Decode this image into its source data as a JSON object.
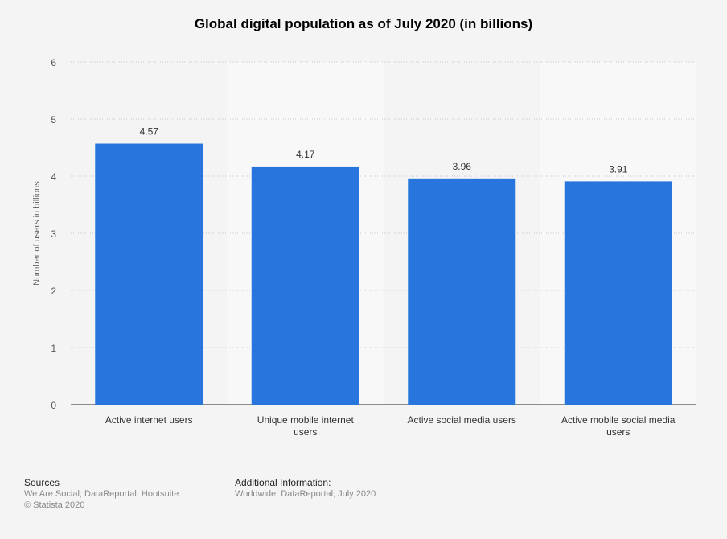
{
  "chart_data": {
    "type": "bar",
    "title": "Global digital population as of July 2020 (in billions)",
    "xlabel": "",
    "ylabel": "Number of users in billions",
    "categories": [
      "Active internet users",
      "Unique mobile internet users",
      "Active social media users",
      "Active mobile social media users"
    ],
    "values": [
      4.57,
      4.17,
      3.96,
      3.91
    ],
    "data_labels": [
      "4.57",
      "4.17",
      "3.96",
      "3.91"
    ],
    "ylim": [
      0,
      6
    ],
    "yticks": [
      0,
      1,
      2,
      3,
      4,
      5,
      6
    ],
    "grid": true,
    "legend": "none",
    "colors": {
      "bar": "#2876dd",
      "background": "#f4f4f4",
      "band": "#f8f8f8"
    }
  },
  "footer": {
    "sources_heading": "Sources",
    "sources": "We Are Social; DataReportal; Hootsuite",
    "copyright": "© Statista 2020",
    "additional_heading": "Additional Information:",
    "additional": "Worldwide; DataReportal; July 2020"
  }
}
